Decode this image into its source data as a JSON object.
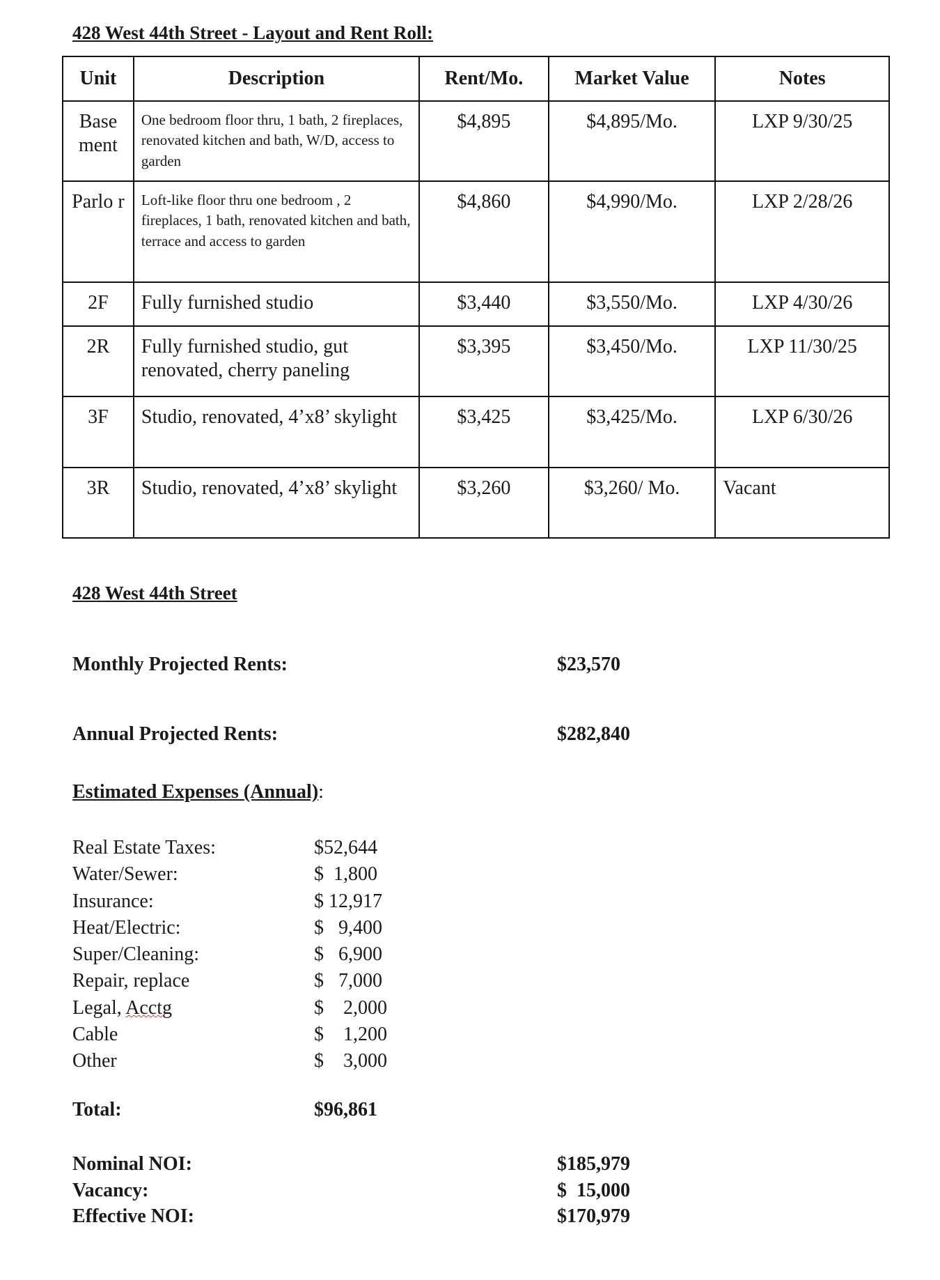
{
  "title": "428 West 44th Street - Layout and Rent Roll:",
  "table": {
    "headers": [
      "Unit",
      "Description",
      "Rent/Mo.",
      "Market Value",
      "Notes"
    ],
    "rows": [
      {
        "unit": "Base ment",
        "description": "One bedroom floor thru, 1 bath, 2 fireplaces, renovated kitchen and bath, W/D,  access to garden",
        "rent": "$4,895",
        "market": "$4,895/Mo.",
        "notes": "LXP  9/30/25"
      },
      {
        "unit": "Parlo r",
        "description": "Loft-like floor thru one bedroom , 2 fireplaces, 1 bath,  renovated kitchen and bath, terrace and access to garden",
        "rent": "$4,860",
        "market": "$4,990/Mo.",
        "notes": "LXP 2/28/26"
      },
      {
        "unit": "2F",
        "description": "Fully furnished studio",
        "rent": "$3,440",
        "market": "$3,550/Mo.",
        "notes": "LXP 4/30/26"
      },
      {
        "unit": "2R",
        "description": "Fully furnished studio, gut renovated, cherry paneling",
        "rent": "$3,395",
        "market": "$3,450/Mo.",
        "notes": "LXP 11/30/25"
      },
      {
        "unit": "3F",
        "description": "Studio, renovated, 4’x8’ skylight",
        "rent": "$3,425",
        "market": "$3,425/Mo.",
        "notes": "LXP 6/30/26"
      },
      {
        "unit": "3R",
        "description": "Studio, renovated, 4’x8’ skylight",
        "rent": "$3,260",
        "market": "$3,260/ Mo.",
        "notes": "Vacant"
      }
    ]
  },
  "summary": {
    "title": "428 West 44th Street",
    "monthly_label": "Monthly Projected Rents:",
    "monthly_value": "$23,570",
    "annual_label": "Annual Projected Rents:",
    "annual_value": "$282,840",
    "expenses_title": "Estimated Expenses (Annual)",
    "expenses_title_suffix": ":",
    "expenses": [
      {
        "label": "Real Estate Taxes:",
        "value": "$52,644"
      },
      {
        "label": "Water/Sewer:",
        "value": "$  1,800"
      },
      {
        "label": "Insurance:",
        "value": "$ 12,917"
      },
      {
        "label": "Heat/Electric:",
        "value": "$   9,400"
      },
      {
        "label": "Super/Cleaning:",
        "value": "$   6,900"
      },
      {
        "label": "Repair, replace",
        "value": "$   7,000"
      },
      {
        "label": "Legal, ",
        "label_misspelled": "Acctg",
        "value": "$    2,000"
      },
      {
        "label": "Cable",
        "value": "$    1,200"
      },
      {
        "label": "Other",
        "value": "$    3,000"
      }
    ],
    "total_label": "Total:",
    "total_value": "$96,861",
    "nominal_noi_label": "Nominal NOI:",
    "nominal_noi_value": "$185,979",
    "vacancy_label": "Vacancy:",
    "vacancy_value": "$  15,000",
    "effective_noi_label": "Effective NOI:",
    "effective_noi_value": "$170,979"
  }
}
